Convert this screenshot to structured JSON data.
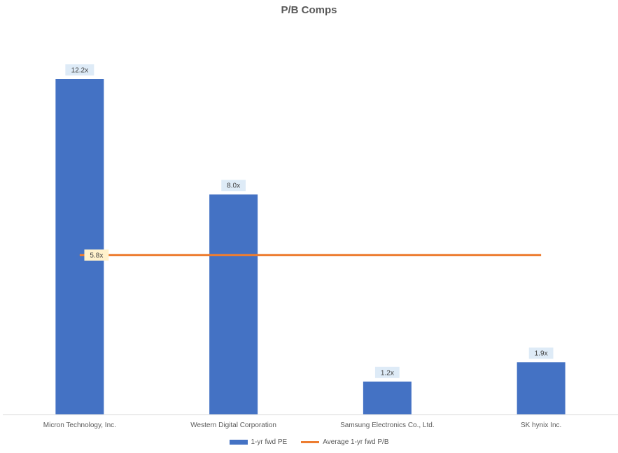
{
  "chart_data": {
    "type": "bar",
    "title": "P/B Comps",
    "categories": [
      "Micron Technology, Inc.",
      "Western Digital Corporation",
      "Samsung Electronics Co., Ltd.",
      "SK hynix Inc."
    ],
    "series": [
      {
        "name": "1-yr fwd PE",
        "type": "bar",
        "values": [
          12.2,
          8.0,
          1.2,
          1.9
        ],
        "labels": [
          "12.2x",
          "8.0x",
          "1.2x",
          "1.9x"
        ],
        "color": "#4472C4"
      },
      {
        "name": "Average 1-yr fwd P/B",
        "type": "line",
        "values": [
          5.8,
          5.8,
          5.8,
          5.8
        ],
        "label": "5.8x",
        "color": "#ED7D31"
      }
    ],
    "ylim": [
      0,
      14
    ],
    "grid": false,
    "legend_position": "bottom",
    "label_background": "#DEEBF7",
    "line_label_background": "#FFF2CC"
  }
}
